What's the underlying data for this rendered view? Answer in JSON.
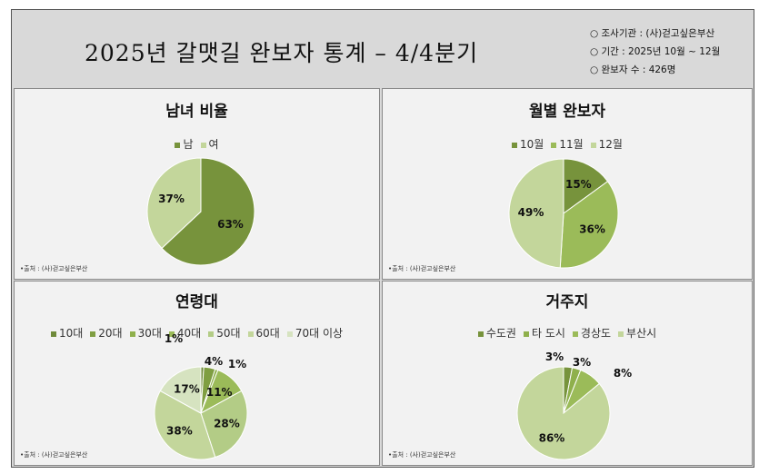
{
  "header": {
    "title": "2025년  갈맷길  완보자  통계 – 4/4분기",
    "info": [
      "○ 조사기관 : (사)걷고싶은부산",
      "○ 기간 : 2025년 10월 ~ 12월",
      "○ 완보자 수 : 426명"
    ]
  },
  "source": "•출처 : (사)걷고싶은부산",
  "chart_data": [
    {
      "type": "pie",
      "title": "남녀 비율",
      "categories": [
        "남",
        "여"
      ],
      "values": [
        63,
        37
      ],
      "colors": [
        "#77933c",
        "#c3d69b"
      ],
      "legend": "top"
    },
    {
      "type": "pie",
      "title": "월별 완보자",
      "categories": [
        "10월",
        "11월",
        "12월"
      ],
      "values": [
        15,
        36,
        49
      ],
      "colors": [
        "#77933c",
        "#9bbb59",
        "#c3d69b"
      ],
      "legend": "top"
    },
    {
      "type": "pie",
      "title": "연령대",
      "categories": [
        "10대",
        "20대",
        "30대",
        "40대",
        "50대",
        "60대",
        "70대 이상"
      ],
      "values": [
        1,
        4,
        1,
        11,
        28,
        38,
        17
      ],
      "colors": [
        "#6f8a3a",
        "#7f9e42",
        "#8fb04c",
        "#9bbb59",
        "#b3cc86",
        "#c3d69b",
        "#d6e3c0"
      ],
      "legend": "top"
    },
    {
      "type": "pie",
      "title": "거주지",
      "categories": [
        "수도권",
        "타 도시",
        "경상도",
        "부산시"
      ],
      "values": [
        3,
        3,
        8,
        86
      ],
      "colors": [
        "#77933c",
        "#8fb04c",
        "#9bbb59",
        "#c3d69b"
      ],
      "legend": "top"
    }
  ]
}
